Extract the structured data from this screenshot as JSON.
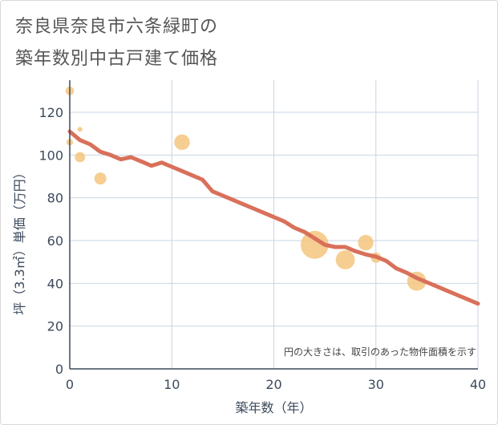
{
  "title_lines": [
    "奈良県奈良市六条緑町の",
    "築年数別中古戸建て価格"
  ],
  "chart_data": {
    "type": "scatter+line",
    "title": "奈良県奈良市六条緑町の築年数別中古戸建て価格",
    "xlabel": "築年数（年）",
    "ylabel": "坪（3.3㎡）単価（万円）",
    "xlim": [
      0,
      40
    ],
    "ylim": [
      0,
      135
    ],
    "xticks": [
      0,
      10,
      20,
      30,
      40
    ],
    "yticks": [
      0,
      20,
      40,
      60,
      80,
      100,
      120
    ],
    "grid": true,
    "note": "円の大きさは、取引のあった物件面積を示す",
    "colors": {
      "bubble": "#f5c57e",
      "line": "#d9705a",
      "grid": "#c9d6e3",
      "axis": "#3c4a5c"
    },
    "bubbles": [
      {
        "x": 0,
        "y": 130,
        "size": 3
      },
      {
        "x": 0,
        "y": 106,
        "size": 2
      },
      {
        "x": 1,
        "y": 112,
        "size": 1
      },
      {
        "x": 1,
        "y": 99,
        "size": 4
      },
      {
        "x": 3,
        "y": 89,
        "size": 5
      },
      {
        "x": 11,
        "y": 106,
        "size": 7
      },
      {
        "x": 24,
        "y": 58,
        "size": 14
      },
      {
        "x": 27,
        "y": 51,
        "size": 9
      },
      {
        "x": 29,
        "y": 59,
        "size": 7
      },
      {
        "x": 30,
        "y": 52,
        "size": 4
      },
      {
        "x": 34,
        "y": 41,
        "size": 9
      }
    ],
    "trend": {
      "x": [
        0,
        1,
        2,
        3,
        4,
        5,
        6,
        7,
        8,
        9,
        10,
        11,
        12,
        13,
        14,
        15,
        16,
        17,
        18,
        19,
        20,
        21,
        22,
        23,
        24,
        25,
        26,
        27,
        28,
        29,
        30,
        31,
        32,
        33,
        34,
        35,
        36,
        37,
        38,
        39,
        40
      ],
      "y": [
        111,
        107,
        105,
        101.5,
        100,
        98,
        99,
        97,
        95,
        96.5,
        94.5,
        92.5,
        90.5,
        88.5,
        83,
        81,
        79,
        77,
        75,
        73,
        71,
        69,
        66,
        64,
        61,
        58,
        57,
        57,
        55,
        53.5,
        52.5,
        50.5,
        47,
        45,
        42.5,
        40.5,
        38.5,
        36.5,
        34.5,
        32.5,
        30.5
      ]
    }
  }
}
